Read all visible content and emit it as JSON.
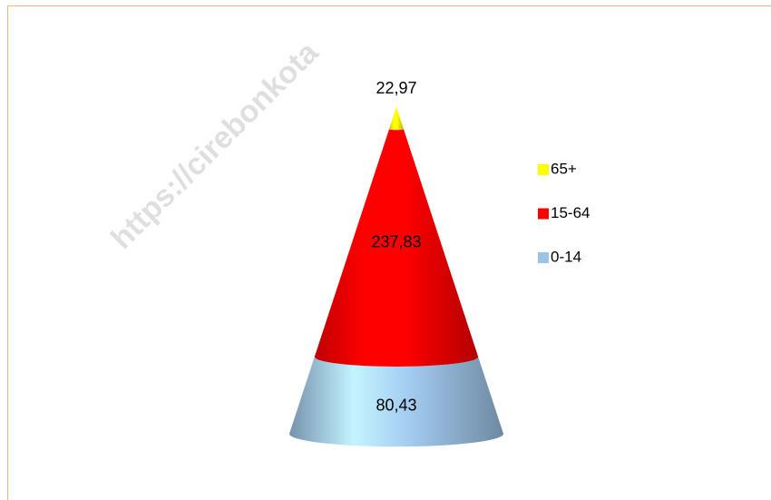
{
  "chart_data": {
    "type": "cone",
    "watermark": "https://cirebonkota",
    "series": [
      {
        "name": "0-14",
        "color": "#9dc3e6",
        "values": [
          80.43
        ],
        "value_labels": [
          "80,43"
        ]
      },
      {
        "name": "15-64",
        "color": "#ff0000",
        "values": [
          237.83
        ],
        "value_labels": [
          "237,83"
        ]
      },
      {
        "name": "65+",
        "color": "#ffff00",
        "values": [
          22.97
        ],
        "value_labels": [
          "22,97"
        ]
      }
    ]
  }
}
